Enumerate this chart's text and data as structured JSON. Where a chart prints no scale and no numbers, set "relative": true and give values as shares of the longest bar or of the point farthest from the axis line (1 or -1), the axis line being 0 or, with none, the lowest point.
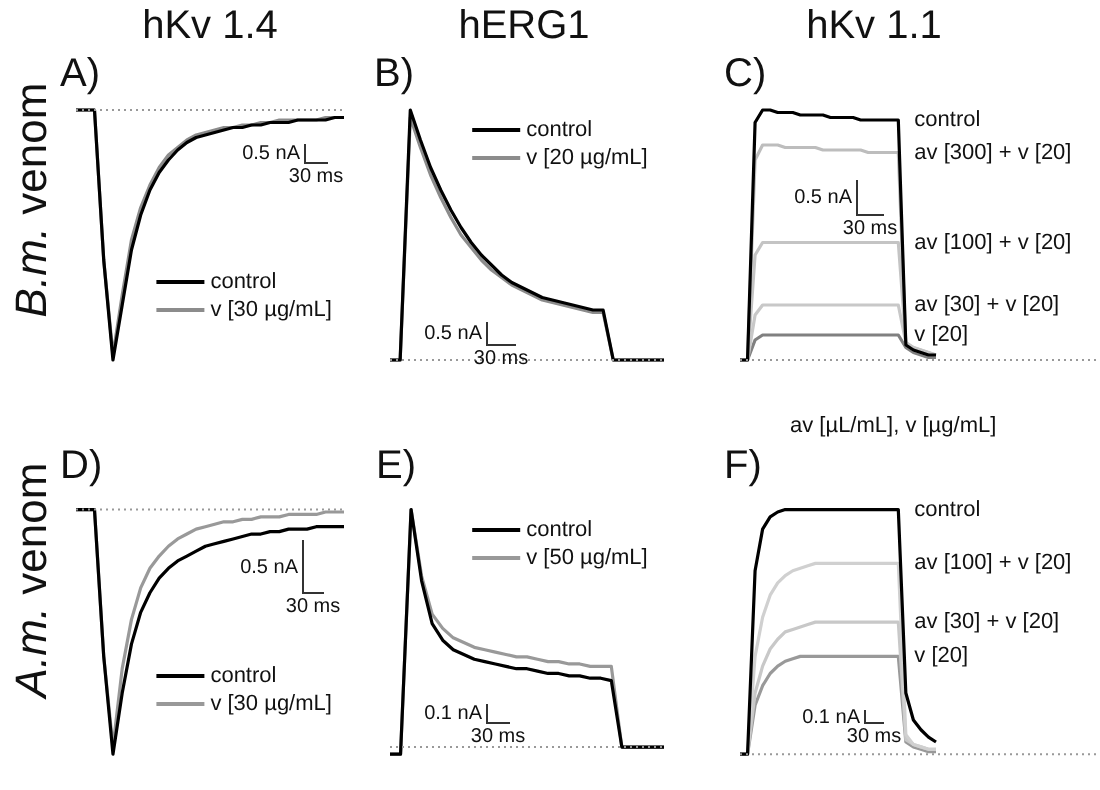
{
  "chart_data": [
    {
      "type": "line",
      "title": "A)",
      "subtitle": "hKv 1.4",
      "ylabel": "B.m. venom",
      "relative": true,
      "legend": "bottom right",
      "categories": [
        null,
        null,
        null,
        null,
        null,
        null,
        null,
        null,
        null,
        null,
        null,
        null,
        null,
        null,
        null,
        null,
        null,
        null,
        null,
        null,
        null,
        null,
        null,
        null,
        null,
        null,
        null,
        null,
        null,
        null
      ],
      "series": [
        {
          "name": "control",
          "color": "#000000",
          "values": [
            0,
            0,
            0,
            -0.6,
            -1,
            -0.78,
            -0.56,
            -0.42,
            -0.32,
            -0.25,
            -0.2,
            -0.16,
            -0.13,
            -0.11,
            -0.1,
            -0.09,
            -0.08,
            -0.07,
            -0.07,
            -0.06,
            -0.06,
            -0.05,
            -0.05,
            -0.05,
            -0.04,
            -0.04,
            -0.04,
            -0.04,
            -0.03,
            -0.03
          ]
        },
        {
          "name": "v [30 µg/mL]",
          "color": "#8c8c8c",
          "values": [
            0,
            0,
            0,
            -0.6,
            -0.98,
            -0.74,
            -0.52,
            -0.39,
            -0.3,
            -0.23,
            -0.18,
            -0.15,
            -0.12,
            -0.1,
            -0.09,
            -0.08,
            -0.07,
            -0.07,
            -0.06,
            -0.06,
            -0.05,
            -0.05,
            -0.04,
            -0.04,
            -0.04,
            -0.04,
            -0.04,
            -0.03,
            -0.03,
            -0.03
          ]
        }
      ],
      "ref_lines": [
        {
          "axis": "y",
          "value": 0,
          "line_style": "dotted",
          "color": "#999999"
        }
      ],
      "annotations": [
        "0.5 nA",
        "30 ms"
      ]
    },
    {
      "type": "line",
      "title": "B)",
      "subtitle": "hERG1",
      "relative": true,
      "legend": "top right",
      "categories": [
        null,
        null,
        null,
        null,
        null,
        null,
        null,
        null,
        null,
        null,
        null,
        null,
        null,
        null,
        null,
        null,
        null,
        null,
        null,
        null,
        null,
        null,
        null,
        null,
        null,
        null,
        null,
        null
      ],
      "series": [
        {
          "name": "control",
          "color": "#000000",
          "values": [
            0,
            0,
            1,
            0.88,
            0.77,
            0.68,
            0.6,
            0.53,
            0.47,
            0.42,
            0.38,
            0.34,
            0.31,
            0.29,
            0.27,
            0.25,
            0.24,
            0.23,
            0.22,
            0.21,
            0.2,
            0.2,
            0,
            0,
            0,
            0,
            0,
            0
          ]
        },
        {
          "name": "v [20 µg/mL]",
          "color": "#8c8c8c",
          "values": [
            0,
            0,
            0.97,
            0.85,
            0.74,
            0.65,
            0.57,
            0.5,
            0.45,
            0.4,
            0.36,
            0.33,
            0.3,
            0.28,
            0.26,
            0.24,
            0.23,
            0.22,
            0.21,
            0.2,
            0.19,
            0.19,
            0,
            0,
            0,
            0,
            0,
            0
          ]
        }
      ],
      "ref_lines": [
        {
          "axis": "y",
          "value": 0,
          "line_style": "dotted",
          "color": "#999999"
        }
      ],
      "annotations": [
        "0.5 nA",
        "30 ms"
      ]
    },
    {
      "type": "line",
      "title": "C)",
      "subtitle": "hKv 1.1",
      "relative": true,
      "legend": false,
      "categories": [
        null,
        null,
        null,
        null,
        null,
        null,
        null,
        null,
        null,
        null,
        null,
        null,
        null,
        null,
        null,
        null,
        null,
        null,
        null,
        null,
        null,
        null,
        null,
        null,
        null,
        null,
        null
      ],
      "series": [
        {
          "name": "control",
          "color": "#000000",
          "values": [
            0,
            0,
            0.95,
            1,
            1,
            0.99,
            0.99,
            0.99,
            0.98,
            0.98,
            0.98,
            0.98,
            0.97,
            0.97,
            0.97,
            0.97,
            0.96,
            0.96,
            0.96,
            0.96,
            0.96,
            0.96,
            0.06,
            0.04,
            0.03,
            0.02,
            0.02
          ]
        },
        {
          "name": "av [300] + v [20]",
          "color": "#bdbdbd",
          "values": [
            0,
            0,
            0.8,
            0.86,
            0.86,
            0.86,
            0.85,
            0.85,
            0.85,
            0.85,
            0.85,
            0.84,
            0.84,
            0.84,
            0.84,
            0.84,
            0.84,
            0.83,
            0.83,
            0.83,
            0.83,
            0.83,
            0.06,
            0.04,
            0.03,
            0.02,
            0.02
          ]
        },
        {
          "name": "av [100] + v [20]",
          "color": "#c4c4c4",
          "values": [
            0,
            0,
            0.42,
            0.47,
            0.47,
            0.47,
            0.47,
            0.47,
            0.47,
            0.47,
            0.47,
            0.47,
            0.47,
            0.47,
            0.47,
            0.47,
            0.47,
            0.47,
            0.47,
            0.47,
            0.47,
            0.47,
            0.07,
            0.05,
            0.04,
            0.03,
            0.02
          ]
        },
        {
          "name": "av [30] + v [20]",
          "color": "#c8c8c8",
          "values": [
            0,
            0,
            0.18,
            0.22,
            0.22,
            0.22,
            0.22,
            0.22,
            0.22,
            0.22,
            0.22,
            0.22,
            0.22,
            0.22,
            0.22,
            0.22,
            0.22,
            0.22,
            0.22,
            0.22,
            0.22,
            0.22,
            0.07,
            0.05,
            0.04,
            0.03,
            0.02
          ]
        },
        {
          "name": "v [20]",
          "color": "#808080",
          "values": [
            0,
            0,
            0.08,
            0.1,
            0.1,
            0.1,
            0.1,
            0.1,
            0.1,
            0.1,
            0.1,
            0.1,
            0.1,
            0.1,
            0.1,
            0.1,
            0.1,
            0.1,
            0.1,
            0.1,
            0.1,
            0.1,
            0.05,
            0.03,
            0.02,
            0.01,
            0.01
          ]
        }
      ],
      "ref_lines": [
        {
          "axis": "y",
          "value": 0,
          "line_style": "dotted",
          "color": "#999999"
        }
      ],
      "annotations": [
        "0.5 nA",
        "30 ms"
      ]
    },
    {
      "type": "line",
      "title": "D)",
      "ylabel": "A.m. venom",
      "relative": true,
      "legend": "bottom right",
      "categories": [
        null,
        null,
        null,
        null,
        null,
        null,
        null,
        null,
        null,
        null,
        null,
        null,
        null,
        null,
        null,
        null,
        null,
        null,
        null,
        null,
        null,
        null,
        null,
        null,
        null,
        null,
        null,
        null,
        null,
        null
      ],
      "series": [
        {
          "name": "control",
          "color": "#000000",
          "values": [
            0,
            0,
            0,
            -0.6,
            -1,
            -0.75,
            -0.55,
            -0.42,
            -0.34,
            -0.28,
            -0.24,
            -0.21,
            -0.19,
            -0.17,
            -0.15,
            -0.14,
            -0.13,
            -0.12,
            -0.11,
            -0.1,
            -0.1,
            -0.09,
            -0.09,
            -0.08,
            -0.08,
            -0.08,
            -0.07,
            -0.07,
            -0.07,
            -0.07
          ]
        },
        {
          "name": "v [30 µg/mL]",
          "color": "#999999",
          "values": [
            0,
            0,
            0,
            -0.6,
            -0.97,
            -0.65,
            -0.45,
            -0.32,
            -0.24,
            -0.19,
            -0.15,
            -0.12,
            -0.1,
            -0.08,
            -0.07,
            -0.06,
            -0.05,
            -0.05,
            -0.04,
            -0.04,
            -0.03,
            -0.03,
            -0.03,
            -0.02,
            -0.02,
            -0.02,
            -0.02,
            -0.01,
            -0.01,
            -0.01
          ]
        }
      ],
      "ref_lines": [
        {
          "axis": "y",
          "value": 0,
          "line_style": "dotted",
          "color": "#999999"
        }
      ],
      "annotations": [
        "0.5 nA",
        "30 ms"
      ]
    },
    {
      "type": "line",
      "title": "E)",
      "relative": true,
      "legend": "top right",
      "categories": [
        null,
        null,
        null,
        null,
        null,
        null,
        null,
        null,
        null,
        null,
        null,
        null,
        null,
        null,
        null,
        null,
        null,
        null,
        null,
        null,
        null,
        null,
        null,
        null,
        null,
        null,
        null
      ],
      "series": [
        {
          "name": "control",
          "color": "#000000",
          "values": [
            -0.03,
            -0.03,
            1,
            0.7,
            0.52,
            0.45,
            0.41,
            0.39,
            0.37,
            0.36,
            0.35,
            0.34,
            0.33,
            0.33,
            0.32,
            0.31,
            0.31,
            0.3,
            0.3,
            0.29,
            0.29,
            0.28,
            0,
            0,
            0,
            0,
            0
          ]
        },
        {
          "name": "v [50 µg/mL]",
          "color": "#999999",
          "values": [
            -0.03,
            -0.03,
            1,
            0.72,
            0.56,
            0.5,
            0.46,
            0.44,
            0.42,
            0.41,
            0.4,
            0.39,
            0.38,
            0.38,
            0.37,
            0.36,
            0.36,
            0.35,
            0.35,
            0.34,
            0.34,
            0.34,
            0,
            0,
            0,
            0,
            0
          ]
        }
      ],
      "ref_lines": [
        {
          "axis": "y",
          "value": 0,
          "line_style": "dotted",
          "color": "#999999"
        }
      ],
      "annotations": [
        "0.1 nA",
        "30 ms"
      ]
    },
    {
      "type": "line",
      "title": "F)",
      "relative": true,
      "legend": false,
      "categories": [
        null,
        null,
        null,
        null,
        null,
        null,
        null,
        null,
        null,
        null,
        null,
        null,
        null,
        null,
        null,
        null,
        null,
        null,
        null,
        null,
        null,
        null,
        null,
        null,
        null,
        null,
        null
      ],
      "series": [
        {
          "name": "control",
          "color": "#000000",
          "values": [
            0,
            0,
            0.75,
            0.92,
            0.97,
            0.99,
            1,
            1,
            1,
            1,
            1,
            1,
            1,
            1,
            1,
            1,
            1,
            1,
            1,
            1,
            1,
            1,
            0.25,
            0.14,
            0.1,
            0.07,
            0.05
          ]
        },
        {
          "name": "av [100] + v [20]",
          "color": "#d0d0d0",
          "values": [
            0,
            0,
            0.4,
            0.56,
            0.65,
            0.7,
            0.73,
            0.75,
            0.76,
            0.77,
            0.78,
            0.78,
            0.78,
            0.78,
            0.78,
            0.78,
            0.78,
            0.78,
            0.78,
            0.78,
            0.78,
            0.78,
            0.08,
            0.04,
            0.03,
            0.02,
            0.02
          ]
        },
        {
          "name": "av [30] + v [20]",
          "color": "#c8c8c8",
          "values": [
            0,
            0,
            0.25,
            0.36,
            0.43,
            0.47,
            0.5,
            0.51,
            0.52,
            0.53,
            0.54,
            0.54,
            0.54,
            0.54,
            0.54,
            0.54,
            0.54,
            0.54,
            0.54,
            0.54,
            0.54,
            0.54,
            0.06,
            0.04,
            0.03,
            0.02,
            0.02
          ]
        },
        {
          "name": "v [20]",
          "color": "#999999",
          "values": [
            0,
            0,
            0.2,
            0.28,
            0.33,
            0.36,
            0.38,
            0.39,
            0.4,
            0.4,
            0.4,
            0.4,
            0.4,
            0.4,
            0.4,
            0.4,
            0.4,
            0.4,
            0.4,
            0.4,
            0.4,
            0.4,
            0.05,
            0.03,
            0.02,
            0.01,
            0.01
          ]
        }
      ],
      "ref_lines": [
        {
          "axis": "y",
          "value": 0,
          "line_style": "dotted",
          "color": "#999999"
        }
      ],
      "annotations": [
        "0.1 nA",
        "30 ms",
        "av [µL/mL], v [µg/mL]"
      ]
    }
  ]
}
